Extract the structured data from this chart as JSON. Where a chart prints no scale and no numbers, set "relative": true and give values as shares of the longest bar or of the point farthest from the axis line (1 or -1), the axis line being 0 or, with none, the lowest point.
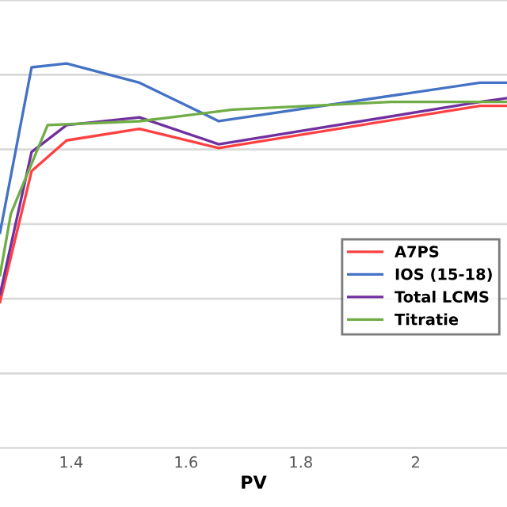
{
  "chart_data": {
    "type": "line",
    "xlabel": "PV",
    "relative": true,
    "xlim": [
      1.276,
      2.159
    ],
    "xticks": [
      1.4,
      1.6,
      1.8,
      2
    ],
    "grid": "y",
    "legend": "right",
    "marker": "none",
    "line_style": "solid",
    "series": [
      {
        "name": "A7PS",
        "color": "#ff4040",
        "x": [
          1.276,
          1.331,
          1.392,
          1.519,
          1.657,
          2.112,
          2.159
        ],
        "values": [
          0.38,
          0.72,
          0.8,
          0.83,
          0.78,
          0.89,
          0.89
        ]
      },
      {
        "name": "IOS (15-18)",
        "color": "#4472c4",
        "x": [
          1.276,
          1.331,
          1.392,
          1.519,
          1.657,
          2.112,
          2.159
        ],
        "values": [
          0.56,
          0.99,
          1.0,
          0.95,
          0.85,
          0.95,
          0.95
        ]
      },
      {
        "name": "Total LCMS",
        "color": "#7030a0",
        "x": [
          1.276,
          1.331,
          1.392,
          1.519,
          1.657,
          2.112,
          2.159
        ],
        "values": [
          0.4,
          0.77,
          0.84,
          0.86,
          0.79,
          0.9,
          0.91
        ]
      },
      {
        "name": "Titratie",
        "color": "#70ad47",
        "x": [
          1.276,
          1.295,
          1.359,
          1.519,
          1.681,
          1.957,
          2.159
        ],
        "values": [
          0.45,
          0.61,
          0.84,
          0.85,
          0.88,
          0.9,
          0.9
        ]
      }
    ]
  }
}
